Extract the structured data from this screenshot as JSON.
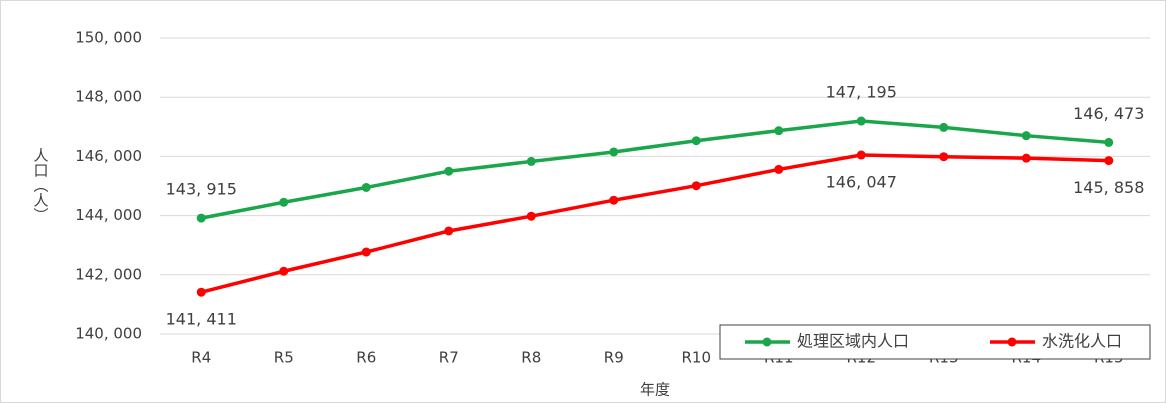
{
  "chart_data": {
    "type": "line",
    "x_label": "年度",
    "y_label": "人口（人）",
    "categories": [
      "R4",
      "R5",
      "R6",
      "R7",
      "R8",
      "R9",
      "R10",
      "R11",
      "R12",
      "R13",
      "R14",
      "R15"
    ],
    "series": [
      {
        "name": "処理区域内人口",
        "color": "#1aa64a",
        "values": [
          143915,
          144450,
          144950,
          145500,
          145830,
          146150,
          146530,
          146870,
          147195,
          146980,
          146700,
          146473
        ],
        "value_labels": [
          "143, 915",
          null,
          null,
          null,
          null,
          null,
          null,
          null,
          "147, 195",
          null,
          null,
          "146, 473"
        ]
      },
      {
        "name": "水洗化人口",
        "color": "#ff0000",
        "values": [
          141411,
          142120,
          142770,
          143480,
          143980,
          144520,
          145010,
          145560,
          146047,
          145990,
          145940,
          145858
        ],
        "value_labels": [
          "141, 411",
          null,
          null,
          null,
          null,
          null,
          null,
          null,
          "146, 047",
          null,
          null,
          "145, 858"
        ]
      }
    ],
    "ylim": [
      140000,
      150000
    ],
    "yticks": [
      {
        "value": 140000,
        "label": "140, 000"
      },
      {
        "value": 142000,
        "label": "142, 000"
      },
      {
        "value": 144000,
        "label": "144, 000"
      },
      {
        "value": 146000,
        "label": "146, 000"
      },
      {
        "value": 148000,
        "label": "148, 000"
      },
      {
        "value": 150000,
        "label": "150, 000"
      }
    ],
    "grid": true,
    "legend": "bottom-right"
  }
}
